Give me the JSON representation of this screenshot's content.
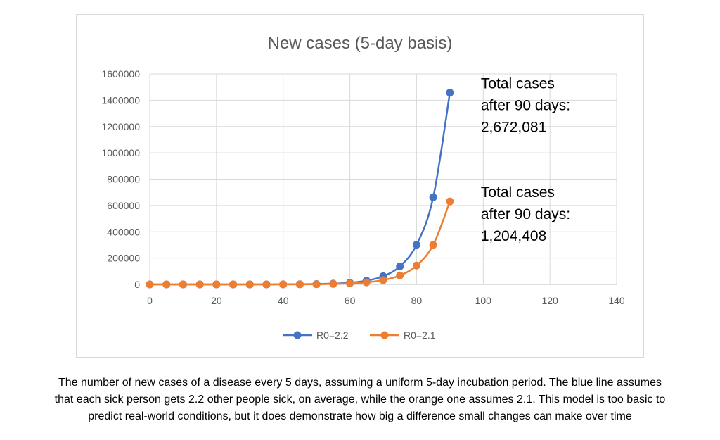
{
  "chart_data": {
    "type": "line",
    "title": "New cases (5-day basis)",
    "xlabel": "",
    "ylabel": "",
    "xlim": [
      0,
      140
    ],
    "ylim": [
      0,
      1600000
    ],
    "x_ticks": [
      "0",
      "20",
      "40",
      "60",
      "80",
      "100",
      "120",
      "140"
    ],
    "y_ticks": [
      "0",
      "200000",
      "400000",
      "600000",
      "800000",
      "1000000",
      "1200000",
      "1400000",
      "1600000"
    ],
    "grid": "major-both",
    "legend_position": "bottom",
    "x": [
      0,
      5,
      10,
      15,
      20,
      25,
      30,
      35,
      40,
      45,
      50,
      55,
      60,
      65,
      70,
      75,
      80,
      85,
      90
    ],
    "series": [
      {
        "name": "R0=2.2",
        "color": "#4472c4",
        "values": [
          1,
          2,
          5,
          11,
          23,
          52,
          113,
          249,
          549,
          1207,
          2656,
          5843,
          12855,
          28281,
          62218,
          136880,
          301136,
          662499,
          1457498
        ]
      },
      {
        "name": "R0=2.1",
        "color": "#ed7d31",
        "values": [
          1,
          2,
          4,
          9,
          19,
          41,
          86,
          180,
          378,
          794,
          1668,
          3503,
          7356,
          15447,
          32439,
          68122,
          143056,
          300418,
          630877
        ]
      }
    ],
    "annotations": [
      {
        "lines": [
          "Total cases",
          "after 90 days:",
          "2,672,081"
        ],
        "series": "R0=2.2"
      },
      {
        "lines": [
          "Total cases",
          "after 90 days:",
          "1,204,408"
        ],
        "series": "R0=2.1"
      }
    ]
  },
  "caption": [
    "The number of new cases of a disease every 5 days, assuming a uniform 5-day incubation period. The blue line assumes",
    "that each sick person gets 2.2 other people sick, on average, while the orange one assumes 2.1. This model is too basic to",
    "predict real-world conditions, but it does demonstrate how big a difference small changes can make over time"
  ]
}
